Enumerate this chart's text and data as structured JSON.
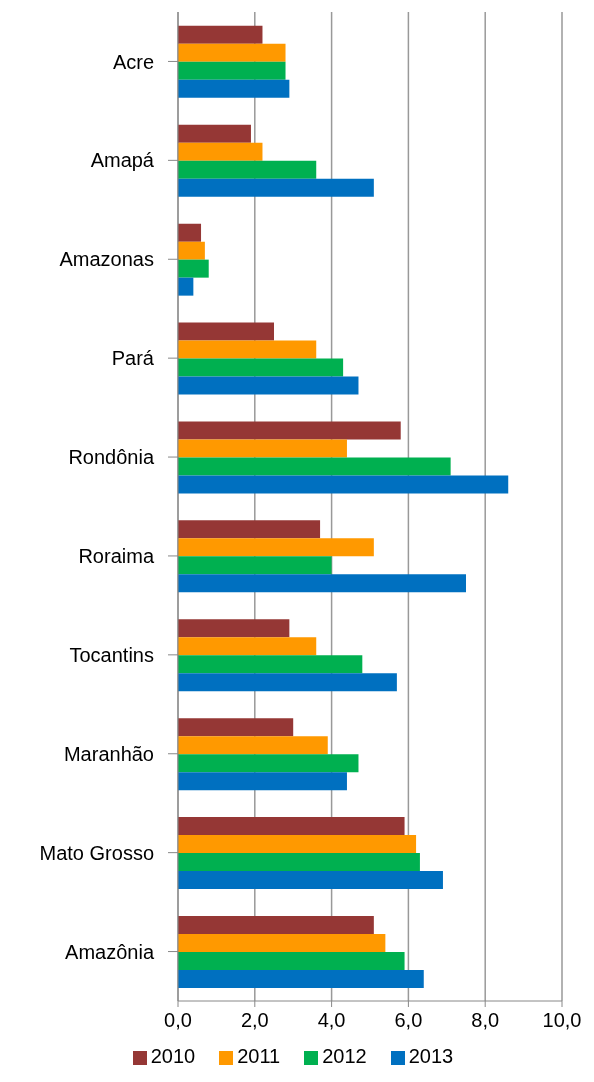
{
  "chart_data": {
    "type": "bar",
    "orientation": "horizontal",
    "categories": [
      "Acre",
      "Amapá",
      "Amazonas",
      "Pará",
      "Rondônia",
      "Roraima",
      "Tocantins",
      "Maranhão",
      "Mato Grosso",
      "Amazônia"
    ],
    "series": [
      {
        "name": "2010",
        "color": "#953735",
        "values": [
          2.2,
          1.9,
          0.6,
          2.5,
          5.8,
          3.7,
          2.9,
          3.0,
          5.9,
          5.1
        ]
      },
      {
        "name": "2011",
        "color": "#ff9900",
        "values": [
          2.8,
          2.2,
          0.7,
          3.6,
          4.4,
          5.1,
          3.6,
          3.9,
          6.2,
          5.4
        ]
      },
      {
        "name": "2012",
        "color": "#00b050",
        "values": [
          2.8,
          3.6,
          0.8,
          4.3,
          7.1,
          4.0,
          4.8,
          4.7,
          6.3,
          5.9
        ]
      },
      {
        "name": "2013",
        "color": "#0070c0",
        "values": [
          2.9,
          5.1,
          0.4,
          4.7,
          8.6,
          7.5,
          5.7,
          4.4,
          6.9,
          6.4
        ]
      }
    ],
    "xlim": [
      0,
      10
    ],
    "xticks": [
      {
        "value": 0,
        "label": "0,0"
      },
      {
        "value": 2,
        "label": "2,0"
      },
      {
        "value": 4,
        "label": "4,0"
      },
      {
        "value": 6,
        "label": "6,0"
      },
      {
        "value": 8,
        "label": "8,0"
      },
      {
        "value": 10,
        "label": "10,0"
      }
    ],
    "grid": "x",
    "legend": "bottom"
  }
}
